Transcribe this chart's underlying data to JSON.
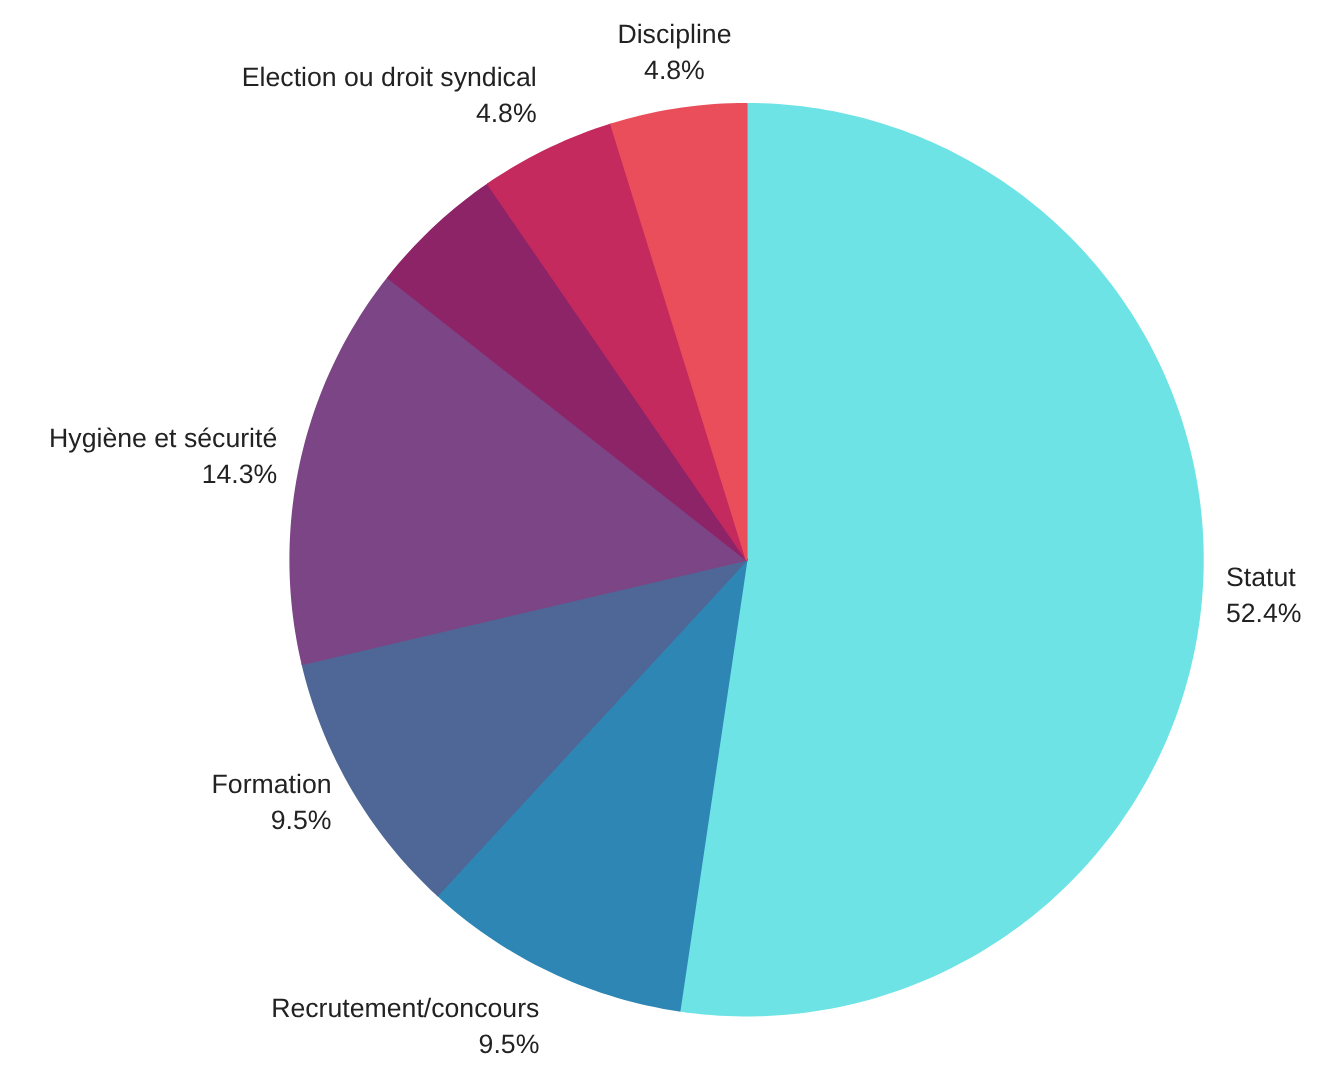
{
  "chart_data": {
    "type": "pie",
    "categories": [
      "Statut",
      "Recrutement/concours",
      "Formation",
      "Hygiène et sécurité",
      null,
      "Election ou droit syndical",
      "Discipline"
    ],
    "values": [
      52.4,
      9.5,
      9.5,
      14.3,
      4.8,
      4.8,
      4.8
    ],
    "value_labels": [
      "52.4%",
      "9.5%",
      "9.5%",
      "14.3%",
      null,
      "4.8%",
      "4.8%"
    ],
    "colors": [
      "#6ee3e6",
      "#2e86b5",
      "#4f6796",
      "#7c4585",
      "#8e2468",
      "#c42a5e",
      "#ea4e5a"
    ],
    "legend": false
  }
}
